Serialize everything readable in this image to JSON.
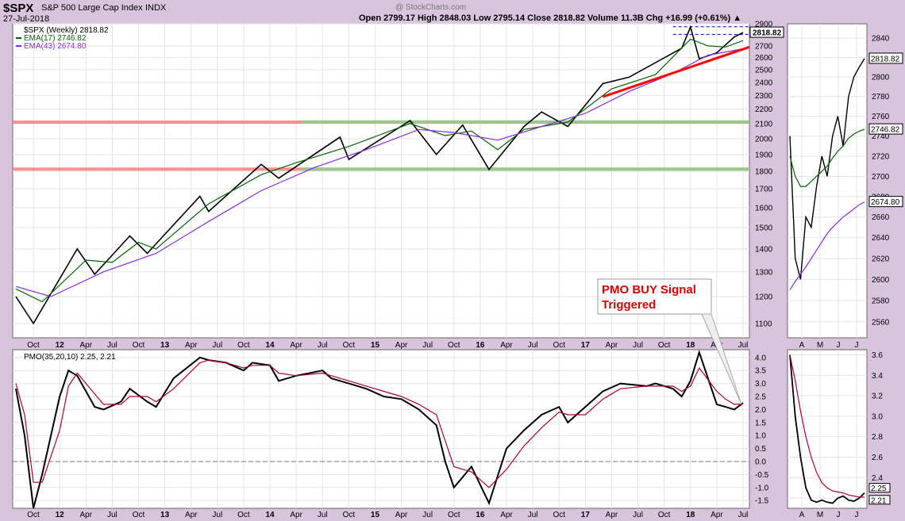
{
  "header": {
    "symbol": "$SPX",
    "name": "S&P 500 Large Cap Index",
    "exchange": "INDX",
    "date": "27-Jul-2018",
    "watermark": "@ StockCharts.com",
    "ohlc_line": "Open 2799.17   High 2848.03   Low 2795.14   Close 2818.82   Volume 11.3B   Chg +16.99 (+0.61%) ▲"
  },
  "chart_data": [
    {
      "type": "line",
      "title": "$SPX (Weekly) 2818.82",
      "scale": "log",
      "ylim": [
        1050,
        2900
      ],
      "y_ticks": [
        1100,
        1200,
        1300,
        1400,
        1500,
        1600,
        1700,
        1800,
        1900,
        2000,
        2100,
        2200,
        2300,
        2400,
        2500,
        2600,
        2700,
        2900
      ],
      "x_ticks": [
        "Oct",
        "12",
        "Apr",
        "Jul",
        "Oct",
        "13",
        "Apr",
        "Jul",
        "Oct",
        "14",
        "Apr",
        "Jul",
        "Oct",
        "15",
        "Apr",
        "Jul",
        "Oct",
        "16",
        "Apr",
        "Jul",
        "Oct",
        "17",
        "Apr",
        "Jul",
        "Oct",
        "18",
        "Apr",
        "Jul"
      ],
      "x_start": "2011-08",
      "x_end": "2018-07",
      "series": [
        {
          "name": "$SPX (Weekly) 2818.82",
          "color": "#000000",
          "x": [
            "2011-08",
            "2011-10",
            "2012-03",
            "2012-05",
            "2012-09",
            "2012-11",
            "2013-05",
            "2013-06",
            "2013-12",
            "2014-02",
            "2014-09",
            "2014-10",
            "2015-05",
            "2015-08",
            "2015-11",
            "2016-02",
            "2016-06",
            "2016-08",
            "2016-11",
            "2017-03",
            "2017-06",
            "2017-12",
            "2018-01",
            "2018-02",
            "2018-04",
            "2018-06",
            "2018-07"
          ],
          "values": [
            1200,
            1100,
            1400,
            1290,
            1460,
            1380,
            1660,
            1580,
            1840,
            1760,
            2010,
            1870,
            2120,
            1900,
            2090,
            1810,
            2080,
            2180,
            2080,
            2390,
            2440,
            2680,
            2870,
            2590,
            2640,
            2780,
            2818.82
          ]
        },
        {
          "name": "EMA(17) 2746.82",
          "color": "#006600",
          "x": [
            "2011-08",
            "2011-11",
            "2012-04",
            "2012-07",
            "2012-10",
            "2012-12",
            "2013-06",
            "2013-12",
            "2014-04",
            "2014-10",
            "2015-05",
            "2015-09",
            "2015-12",
            "2016-03",
            "2016-06",
            "2016-11",
            "2017-04",
            "2017-09",
            "2018-01",
            "2018-03",
            "2018-05",
            "2018-07"
          ],
          "values": [
            1230,
            1180,
            1350,
            1340,
            1430,
            1400,
            1620,
            1780,
            1850,
            1950,
            2100,
            2020,
            2050,
            1930,
            2060,
            2110,
            2350,
            2460,
            2760,
            2700,
            2690,
            2746.82
          ]
        },
        {
          "name": "EMA(43) 2674.80",
          "color": "#8a2be2",
          "x": [
            "2011-08",
            "2011-12",
            "2012-06",
            "2012-12",
            "2013-06",
            "2013-12",
            "2014-06",
            "2014-12",
            "2015-06",
            "2015-10",
            "2016-03",
            "2016-08",
            "2017-01",
            "2017-06",
            "2017-11",
            "2018-03",
            "2018-07"
          ],
          "values": [
            1240,
            1200,
            1300,
            1380,
            1530,
            1690,
            1820,
            1930,
            2060,
            2040,
            1990,
            2080,
            2170,
            2330,
            2470,
            2620,
            2674.8
          ]
        }
      ],
      "horizontal_lines": [
        {
          "value": 2110,
          "color": "#f08080"
        },
        {
          "value": 2112,
          "color": "#8fd18f"
        },
        {
          "value": 1812,
          "color": "#f08080"
        },
        {
          "value": 1812,
          "color": "#8fd18f"
        }
      ],
      "dashed_lines": [
        {
          "value": 2872,
          "from": "2017-11",
          "to": "2018-07"
        },
        {
          "value": 2802,
          "from": "2017-11",
          "to": "2018-07"
        }
      ],
      "trendline": {
        "color": "#ff0000",
        "from": {
          "x": "2017-03",
          "y": 2290
        },
        "to": {
          "x": "2018-07",
          "y": 2690
        }
      },
      "value_tag": "2818.82"
    },
    {
      "type": "line",
      "title": "PMO(35,20,10) 2.25, 2.21",
      "ylim": [
        -1.8,
        4.3
      ],
      "y_ticks": [
        4.0,
        3.5,
        3.0,
        2.5,
        2.0,
        1.5,
        1.0,
        0.5,
        0.0,
        -0.5,
        -1.0,
        -1.5
      ],
      "zero_line": 0,
      "series": [
        {
          "name": "PMO(35,20,10) 2.25",
          "color": "#000000",
          "x": [
            "2011-08",
            "2011-09",
            "2011-10",
            "2011-11",
            "2012-01",
            "2012-02",
            "2012-03",
            "2012-05",
            "2012-06",
            "2012-08",
            "2012-09",
            "2012-11",
            "2012-12",
            "2013-02",
            "2013-05",
            "2013-06",
            "2013-08",
            "2013-10",
            "2013-11",
            "2014-01",
            "2014-02",
            "2014-04",
            "2014-07",
            "2014-08",
            "2014-10",
            "2014-12",
            "2015-02",
            "2015-04",
            "2015-06",
            "2015-08",
            "2015-09",
            "2015-10",
            "2015-12",
            "2016-02",
            "2016-04",
            "2016-06",
            "2016-08",
            "2016-10",
            "2016-11",
            "2017-01",
            "2017-03",
            "2017-05",
            "2017-08",
            "2017-09",
            "2017-11",
            "2017-12",
            "2018-01",
            "2018-02",
            "2018-04",
            "2018-05",
            "2018-06",
            "2018-07"
          ],
          "values": [
            2.8,
            1.0,
            -1.8,
            -0.5,
            2.5,
            3.5,
            3.3,
            2.1,
            2.0,
            2.3,
            2.8,
            2.3,
            2.1,
            3.2,
            4.0,
            3.9,
            3.8,
            3.5,
            3.8,
            3.7,
            3.1,
            3.3,
            3.5,
            3.2,
            3.0,
            2.8,
            2.5,
            2.4,
            2.0,
            1.4,
            0.0,
            -1.0,
            -0.2,
            -1.6,
            0.5,
            1.2,
            1.8,
            2.1,
            1.5,
            2.1,
            2.7,
            3.0,
            2.9,
            3.0,
            2.8,
            2.5,
            3.1,
            4.2,
            2.2,
            2.1,
            2.0,
            2.25
          ]
        },
        {
          "name": "signal 2.21",
          "color": "#b00030",
          "x": [
            "2011-08",
            "2011-09",
            "2011-10",
            "2011-11",
            "2012-01",
            "2012-02",
            "2012-03",
            "2012-05",
            "2012-06",
            "2012-08",
            "2012-09",
            "2012-11",
            "2012-12",
            "2013-02",
            "2013-05",
            "2013-06",
            "2013-08",
            "2013-10",
            "2013-11",
            "2014-01",
            "2014-02",
            "2014-04",
            "2014-07",
            "2014-08",
            "2014-10",
            "2014-12",
            "2015-02",
            "2015-04",
            "2015-06",
            "2015-08",
            "2015-09",
            "2015-10",
            "2015-12",
            "2016-02",
            "2016-04",
            "2016-06",
            "2016-08",
            "2016-10",
            "2016-11",
            "2017-01",
            "2017-03",
            "2017-05",
            "2017-08",
            "2017-09",
            "2017-11",
            "2017-12",
            "2018-01",
            "2018-02",
            "2018-04",
            "2018-05",
            "2018-06",
            "2018-07"
          ],
          "values": [
            3.0,
            1.8,
            -0.8,
            -0.8,
            1.2,
            2.9,
            3.4,
            2.6,
            2.2,
            2.2,
            2.5,
            2.5,
            2.3,
            2.8,
            3.8,
            3.9,
            3.8,
            3.6,
            3.7,
            3.7,
            3.4,
            3.3,
            3.4,
            3.3,
            3.1,
            2.9,
            2.7,
            2.5,
            2.2,
            1.8,
            0.8,
            -0.2,
            -0.4,
            -1.0,
            -0.3,
            0.6,
            1.3,
            1.9,
            1.8,
            1.8,
            2.4,
            2.8,
            2.9,
            2.9,
            2.9,
            2.7,
            2.9,
            3.6,
            2.7,
            2.4,
            2.2,
            2.21
          ]
        }
      ],
      "annotation": {
        "lines": [
          "PMO BUY Signal",
          "Triggered"
        ]
      }
    },
    {
      "type": "line",
      "title": "",
      "scale": "log",
      "ylim": [
        2545,
        2855
      ],
      "y_ticks": [
        2560,
        2580,
        2600,
        2620,
        2640,
        2660,
        2680,
        2700,
        2720,
        2740,
        2760,
        2780,
        2800,
        2820,
        2840
      ],
      "x_ticks": [
        "A",
        "M",
        "J",
        "J"
      ],
      "tags": [
        "2818.82",
        "2746.82",
        "2674.80"
      ]
    },
    {
      "type": "line",
      "title": "",
      "ylim": [
        2.1,
        3.65
      ],
      "y_ticks": [
        3.6,
        3.4,
        3.2,
        3.0,
        2.8,
        2.6,
        2.4,
        2.2
      ],
      "tags": [
        "2.25",
        "2.21"
      ]
    }
  ]
}
